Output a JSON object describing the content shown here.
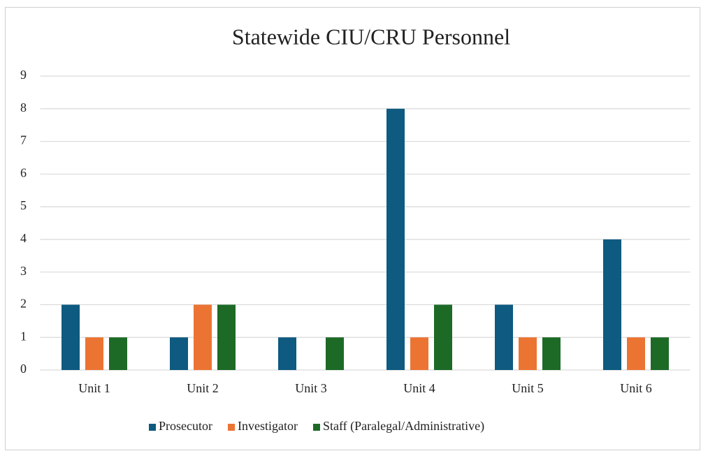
{
  "chart_data": {
    "type": "bar",
    "title": "Statewide CIU/CRU Personnel",
    "categories": [
      "Unit 1",
      "Unit 2",
      "Unit 3",
      "Unit 4",
      "Unit 5",
      "Unit 6"
    ],
    "series": [
      {
        "name": "Prosecutor",
        "color": "#0e5a80",
        "values": [
          2,
          1,
          1,
          8,
          2,
          4
        ]
      },
      {
        "name": "Investigator",
        "color": "#ec7433",
        "values": [
          1,
          2,
          0,
          1,
          1,
          1
        ]
      },
      {
        "name": "Staff (Paralegal/Administrative)",
        "color": "#1d6a27",
        "values": [
          1,
          2,
          1,
          2,
          1,
          1
        ]
      }
    ],
    "ylim": [
      0,
      9
    ],
    "yticks": [
      0,
      1,
      2,
      3,
      4,
      5,
      6,
      7,
      8,
      9
    ],
    "grid": true,
    "legend": "bottom"
  }
}
